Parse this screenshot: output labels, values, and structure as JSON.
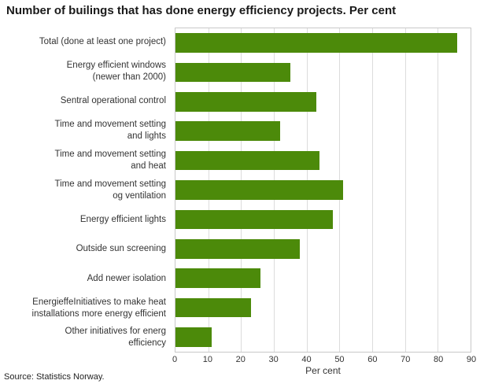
{
  "title": "Number of builings that has done energy efficiency projects. Per cent",
  "source": "Source: Statistics Norway.",
  "chart_data": {
    "type": "bar",
    "orientation": "horizontal",
    "title": "Number of builings that has done energy efficiency projects. Per cent",
    "categories": [
      "Total (done at least one project)",
      "Energy efficient windows\n(newer than 2000)",
      "Sentral operational control",
      "Time and movement setting\nand lights",
      "Time and movement setting\nand heat",
      "Time and movement setting\nog ventilation",
      "Energy efficient lights",
      "Outside sun screening",
      "Add newer isolation",
      "EnergieffeInitiatives to make heat\ninstallations more energy efficient",
      "Other initiatives for energ\nefficiency"
    ],
    "values": [
      86,
      35,
      43,
      32,
      44,
      51,
      48,
      38,
      26,
      23,
      11
    ],
    "xlabel": "Per cent",
    "ylabel": "",
    "xlim": [
      0,
      90
    ],
    "ticks": [
      0,
      10,
      20,
      30,
      40,
      50,
      60,
      70,
      80,
      90
    ],
    "grid": true,
    "bar_color": "#4c8a0a",
    "gridline_color": "#dcdcdc"
  }
}
